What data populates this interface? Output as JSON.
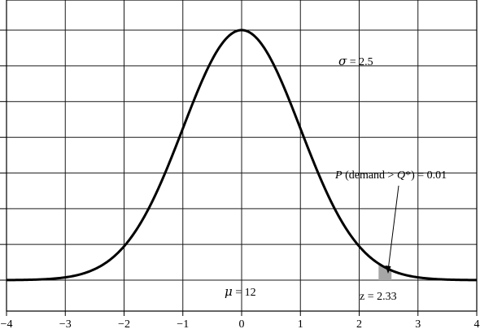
{
  "chart_data": {
    "type": "line",
    "title": "",
    "xlabel": "",
    "ylabel": "",
    "xlim": [
      -4,
      4
    ],
    "ylim": [
      0,
      0.4
    ],
    "x_ticks": [
      -4,
      -3,
      -2,
      -1,
      0,
      1,
      2,
      3,
      4
    ],
    "x_tick_labels": [
      "−4",
      "−3",
      "−2",
      "−1",
      "0",
      "1",
      "2",
      "3",
      "4"
    ],
    "y_tick_count": 8,
    "grid": true,
    "series": [
      {
        "distribution": "standard normal density",
        "mean": 0,
        "sd": 1,
        "x": [
          -4,
          -3.5,
          -3,
          -2.5,
          -2,
          -1.5,
          -1,
          -0.5,
          0,
          0.5,
          1,
          1.5,
          2,
          2.5,
          3,
          3.5,
          4
        ],
        "values": [
          0.0001,
          0.0009,
          0.0044,
          0.0175,
          0.054,
          0.1295,
          0.242,
          0.3521,
          0.3989,
          0.3521,
          0.242,
          0.1295,
          0.054,
          0.0175,
          0.0044,
          0.0009,
          0.0001
        ]
      }
    ],
    "shaded_region": {
      "from": 2.33,
      "to": 2.55,
      "color": "#a6a6a6"
    },
    "annotations": {
      "sigma_symbol": "σ",
      "sigma_text": " = 2.5",
      "mu_symbol": "μ",
      "mu_text": " = 12",
      "prob_p": "P",
      "prob_mid": " (demand > ",
      "prob_q": "Q",
      "prob_end": "*) = 0.01",
      "z_text": "z = 2.33"
    },
    "colors": {
      "curve": "#000000",
      "grid": "#1a1a1a",
      "shade": "#a6a6a6"
    }
  }
}
